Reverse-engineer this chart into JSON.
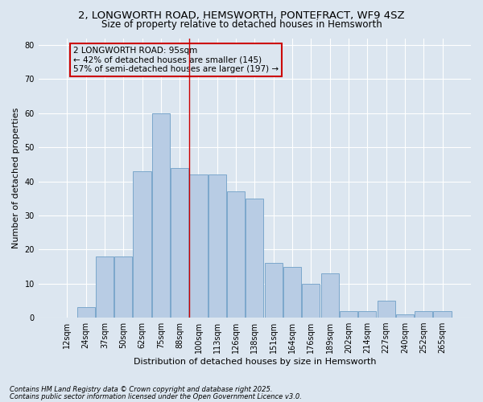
{
  "title1": "2, LONGWORTH ROAD, HEMSWORTH, PONTEFRACT, WF9 4SZ",
  "title2": "Size of property relative to detached houses in Hemsworth",
  "xlabel": "Distribution of detached houses by size in Hemsworth",
  "ylabel": "Number of detached properties",
  "categories": [
    "12sqm",
    "24sqm",
    "37sqm",
    "50sqm",
    "62sqm",
    "75sqm",
    "88sqm",
    "100sqm",
    "113sqm",
    "126sqm",
    "138sqm",
    "151sqm",
    "164sqm",
    "176sqm",
    "189sqm",
    "202sqm",
    "214sqm",
    "227sqm",
    "240sqm",
    "252sqm",
    "265sqm"
  ],
  "values": [
    0,
    3,
    18,
    18,
    43,
    60,
    44,
    42,
    42,
    37,
    35,
    16,
    15,
    10,
    13,
    2,
    2,
    5,
    1,
    2,
    2
  ],
  "bar_color": "#b8cce4",
  "bar_edge_color": "#7ba7cc",
  "background_color": "#dce6f0",
  "grid_color": "#ffffff",
  "vline_color": "#cc0000",
  "annotation_title": "2 LONGWORTH ROAD: 95sqm",
  "annotation_line1": "← 42% of detached houses are smaller (145)",
  "annotation_line2": "57% of semi-detached houses are larger (197) →",
  "box_edge_color": "#cc0000",
  "ylim": [
    0,
    82
  ],
  "yticks": [
    0,
    10,
    20,
    30,
    40,
    50,
    60,
    70,
    80
  ],
  "footer1": "Contains HM Land Registry data © Crown copyright and database right 2025.",
  "footer2": "Contains public sector information licensed under the Open Government Licence v3.0.",
  "title_fontsize": 9.5,
  "subtitle_fontsize": 8.5,
  "axis_label_fontsize": 8,
  "tick_fontsize": 7,
  "annotation_fontsize": 7.5,
  "footer_fontsize": 6
}
